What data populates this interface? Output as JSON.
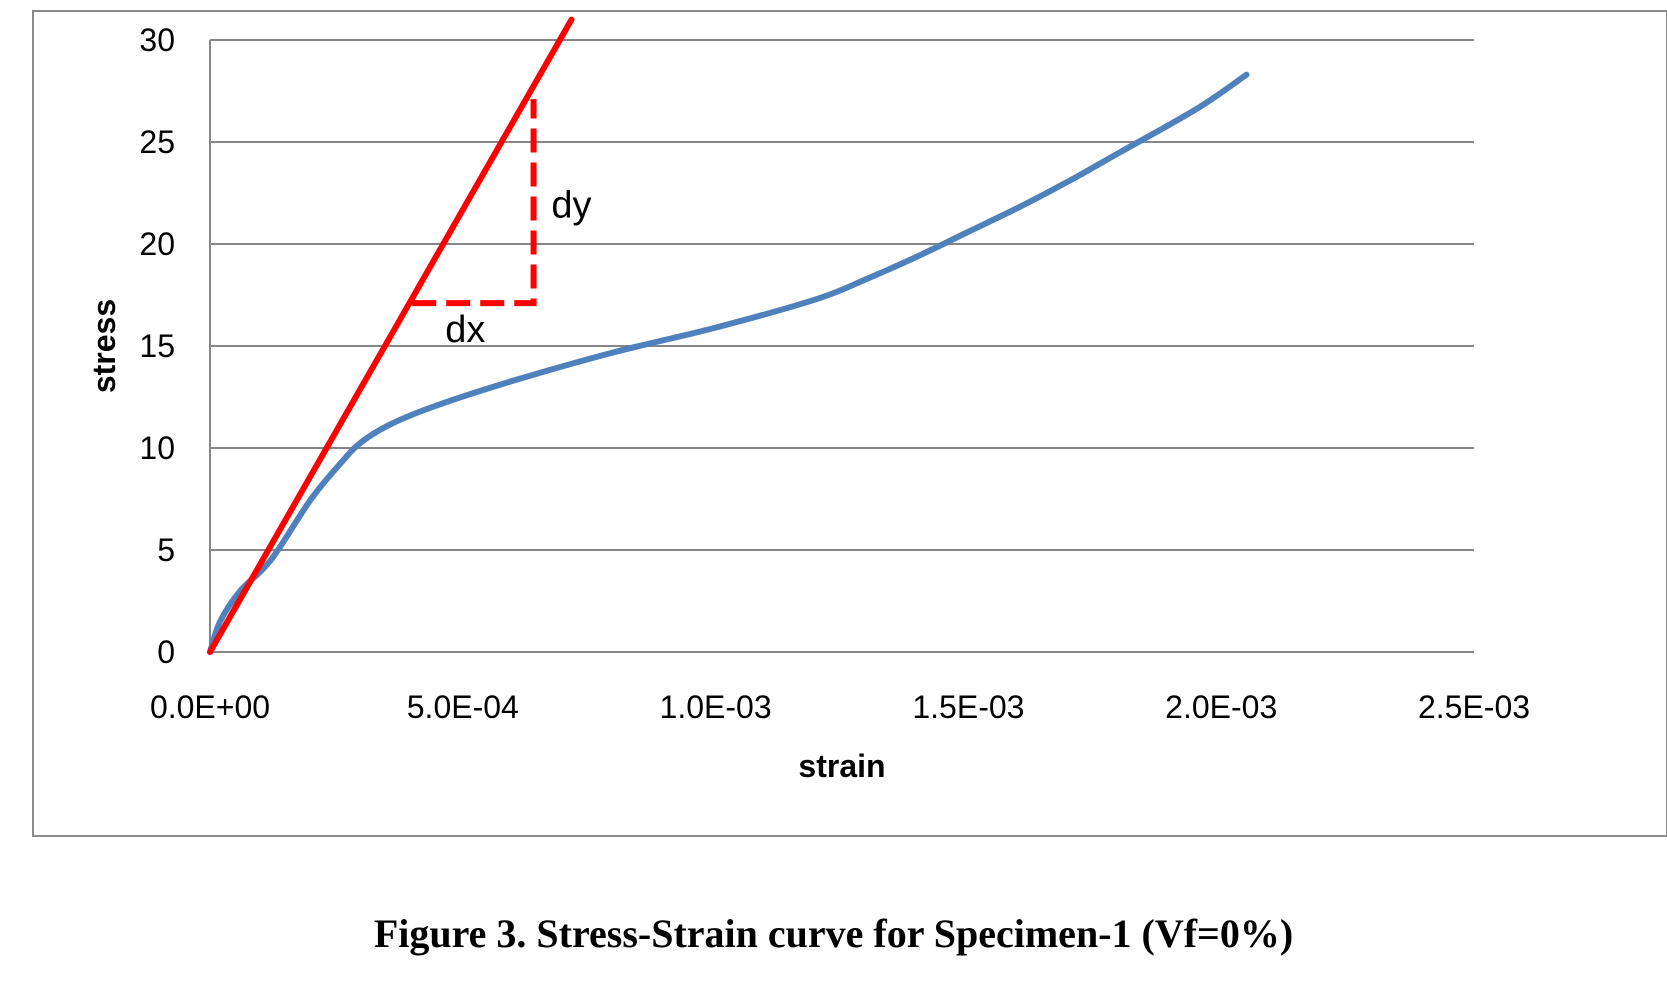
{
  "caption": "Figure 3. Stress-Strain curve for Specimen-1 (Vf=0%)",
  "chart_data": {
    "type": "line",
    "xlabel": "strain",
    "ylabel": "stress",
    "xlim": [
      0,
      0.0025
    ],
    "ylim": [
      0,
      30
    ],
    "x_tick_values": [
      0,
      0.0005,
      0.001,
      0.0015,
      0.002,
      0.0025
    ],
    "x_tick_labels": [
      "0.0E+00",
      "5.0E-04",
      "1.0E-03",
      "1.5E-03",
      "2.0E-03",
      "2.5E-03"
    ],
    "y_tick_values": [
      0,
      5,
      10,
      15,
      20,
      25,
      30
    ],
    "y_tick_labels": [
      "0",
      "5",
      "10",
      "15",
      "20",
      "25",
      "30"
    ],
    "grid": "horizontal",
    "series": [
      {
        "color": "#4F81BD",
        "x": [
          0,
          2e-05,
          6e-05,
          0.00012,
          0.0002,
          0.00026,
          0.0003,
          0.00036,
          0.00045,
          0.0006,
          0.0008,
          0.001,
          0.0012,
          0.0013,
          0.0014,
          0.0015,
          0.0016,
          0.0017,
          0.0018,
          0.00195,
          0.00205
        ],
        "y": [
          0,
          1.5,
          3,
          4.5,
          7.5,
          9.3,
          10.3,
          11.2,
          12.1,
          13.3,
          14.7,
          15.9,
          17.3,
          18.3,
          19.4,
          20.6,
          21.8,
          23.1,
          24.5,
          26.6,
          28.3
        ]
      },
      {
        "color": "#FF0000",
        "x": [
          0,
          0.000715
        ],
        "y": [
          0,
          31
        ]
      }
    ],
    "annotations": [
      {
        "text": "dx",
        "x": 0.000505,
        "y": 15.2
      },
      {
        "text": "dy",
        "x": 0.000715,
        "y": 21.3
      }
    ],
    "slope_triangle": {
      "x1": 0.0004,
      "x2": 0.00064,
      "y1": 17.1,
      "y2": 27.1,
      "color": "#FF0000"
    }
  }
}
